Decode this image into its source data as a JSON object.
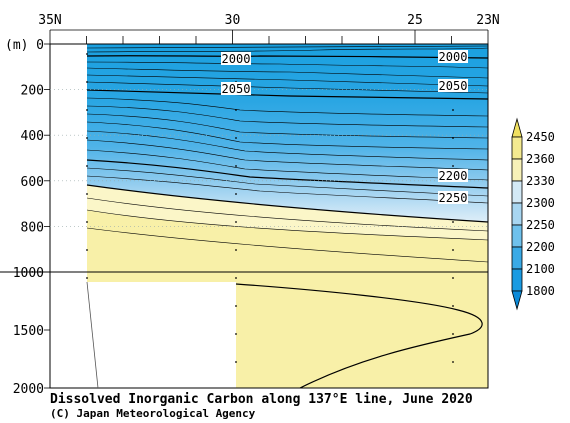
{
  "chart_data": {
    "type": "heatmap",
    "title": "Dissolved Inorganic Carbon along 137°E line, June 2020",
    "credit": "(C) Japan Meteorological Agency",
    "x_axis": {
      "ticks": [
        {
          "label": "35N",
          "lat": 35
        },
        {
          "label": "30",
          "lat": 30
        },
        {
          "label": "25",
          "lat": 25
        },
        {
          "label": "23N",
          "lat": 23
        }
      ],
      "range": [
        35,
        23
      ]
    },
    "y_axis": {
      "unit_label": "(m)",
      "upper_ticks": [
        {
          "label": "0",
          "depth": 0
        },
        {
          "label": "200",
          "depth": 200
        },
        {
          "label": "400",
          "depth": 400
        },
        {
          "label": "600",
          "depth": 600
        },
        {
          "label": "800",
          "depth": 800
        },
        {
          "label": "1000",
          "depth": 1000
        }
      ],
      "lower_ticks": [
        {
          "label": "1500",
          "depth": 1500
        },
        {
          "label": "2000",
          "depth": 2000
        }
      ],
      "range": [
        0,
        2000
      ],
      "axis_break_depth": 1000
    },
    "colorbar": {
      "levels": [
        "1800",
        "2100",
        "2200",
        "2250",
        "2300",
        "2330",
        "2360",
        "2450"
      ],
      "colors": [
        "#0b8ad8",
        "#1a9be2",
        "#3aaae6",
        "#6fc1ec",
        "#a8d6f1",
        "#d3e9f6",
        "#f7f1b8",
        "#f4ea90",
        "#f0e060"
      ]
    },
    "contour_labels": [
      "2000",
      "2000",
      "2050",
      "2050",
      "2200",
      "2250"
    ],
    "shading": {
      "blue_deep": "#1aa0e0",
      "blue_mid": "#6cc0ec",
      "blue_light": "#b8dcf3",
      "blue_pale": "#dcedf8",
      "yellow_pale": "#fbf6c8",
      "yellow": "#f8f0a8"
    }
  }
}
